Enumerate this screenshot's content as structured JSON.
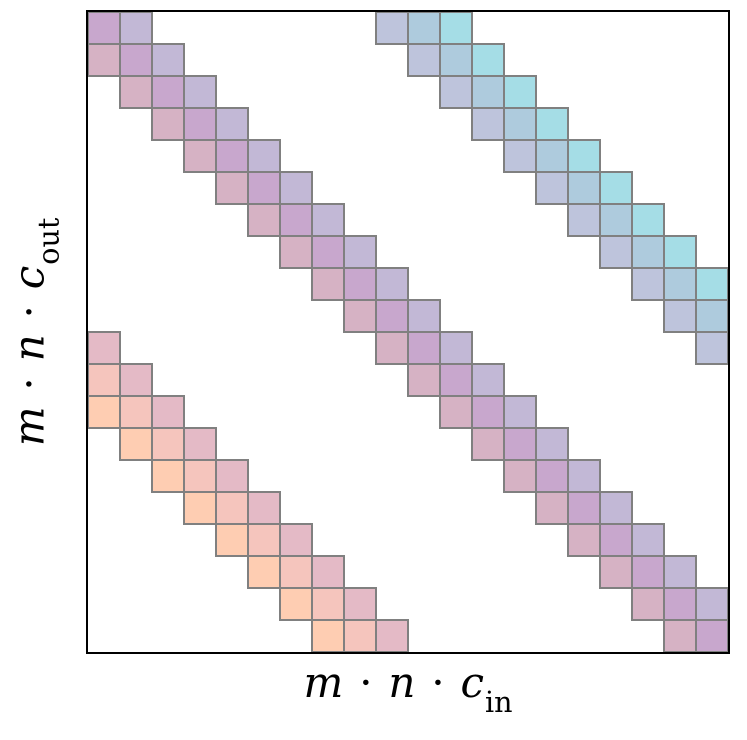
{
  "figure": {
    "background": "#ffffff",
    "xlabel": {
      "text": "m ⋅ n ⋅ c",
      "subscript": "in"
    },
    "ylabel": {
      "text": "m ⋅ n ⋅ c",
      "subscript": "out"
    }
  },
  "chart_data": {
    "type": "heatmap",
    "title": "",
    "xlabel": "m ⋅ n ⋅ c_in",
    "ylabel": "m ⋅ n ⋅ c_out",
    "rows": 20,
    "cols": 20,
    "ticks": "none",
    "grid": "off",
    "spine_color": "#000000",
    "cell_edge_color": "#808080",
    "empty_cell_color": "#ffffff",
    "bands": [
      {
        "name": "main-diagonal-band",
        "row_start": 0,
        "row_end": 19,
        "col_offsets": [
          -1,
          0,
          1
        ],
        "colors": [
          "#d6b2c4",
          "#c8a7cd",
          "#c2b8d6"
        ]
      },
      {
        "name": "upper-right-band",
        "row_start": 0,
        "row_end": 10,
        "col_offsets": [
          9,
          10,
          11
        ],
        "colors": [
          "#bec4dc",
          "#aecbdd",
          "#a5dde6"
        ]
      },
      {
        "name": "lower-left-band",
        "row_start": 10,
        "row_end": 19,
        "col_offsets": [
          -12,
          -11,
          -10
        ],
        "colors": [
          "#fecdb2",
          "#f5c5bd",
          "#e4bac6"
        ]
      }
    ]
  }
}
